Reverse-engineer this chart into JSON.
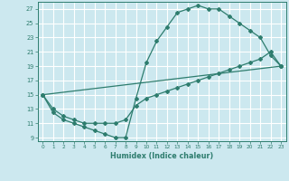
{
  "xlabel": "Humidex (Indice chaleur)",
  "bg_color": "#cce8ef",
  "grid_color": "#ffffff",
  "line_color": "#2e7d6e",
  "xlim": [
    -0.5,
    23.5
  ],
  "ylim": [
    8.5,
    28
  ],
  "xticks": [
    0,
    1,
    2,
    3,
    4,
    5,
    6,
    7,
    8,
    9,
    10,
    11,
    12,
    13,
    14,
    15,
    16,
    17,
    18,
    19,
    20,
    21,
    22,
    23
  ],
  "yticks": [
    9,
    11,
    13,
    15,
    17,
    19,
    21,
    23,
    25,
    27
  ],
  "curve1_x": [
    0,
    1,
    2,
    3,
    4,
    5,
    6,
    7,
    8,
    9,
    10,
    11,
    12,
    13,
    14,
    15,
    16,
    17,
    18,
    19,
    20,
    21,
    22,
    23
  ],
  "curve1_y": [
    15,
    12.5,
    11.5,
    11,
    10.5,
    10,
    9.5,
    9,
    9,
    14.5,
    19.5,
    22.5,
    24.5,
    26.5,
    27,
    27.5,
    27,
    27,
    26,
    25,
    24,
    23,
    20.5,
    19
  ],
  "curve2_x": [
    0,
    1,
    2,
    3,
    4,
    5,
    6,
    7,
    8,
    9,
    10,
    11,
    12,
    13,
    14,
    15,
    16,
    17,
    18,
    19,
    20,
    21,
    22,
    23
  ],
  "curve2_y": [
    15,
    13,
    12,
    11.5,
    11,
    11,
    11,
    11,
    11.5,
    13.5,
    14.5,
    15,
    15.5,
    16,
    16.5,
    17,
    17.5,
    18,
    18.5,
    19,
    19.5,
    20,
    21,
    19
  ],
  "curve3_x": [
    0,
    23
  ],
  "curve3_y": [
    15,
    19
  ]
}
